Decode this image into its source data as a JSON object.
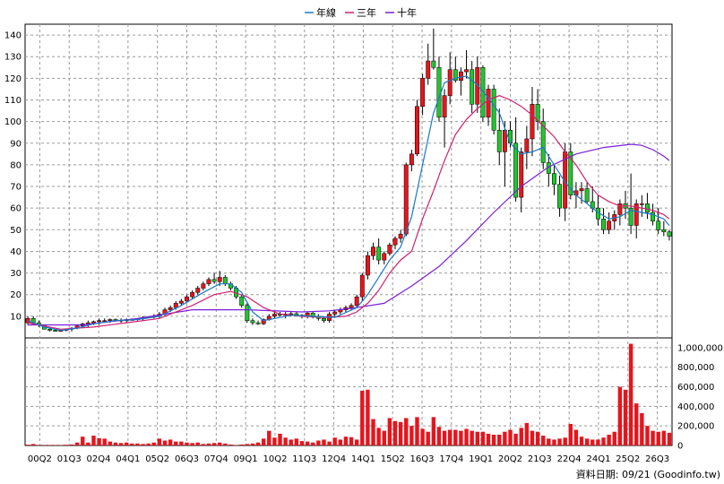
{
  "chart_data": {
    "type": "candlestick",
    "legend": [
      {
        "label": "年線",
        "color": "#1a78c8"
      },
      {
        "label": "三年",
        "color": "#d0206f"
      },
      {
        "label": "十年",
        "color": "#7b1fd8"
      }
    ],
    "legend_position": "top-center",
    "grid": true,
    "price_axis": {
      "ylim": [
        0,
        145
      ],
      "ticks": [
        10,
        20,
        30,
        40,
        50,
        60,
        70,
        80,
        90,
        100,
        110,
        120,
        130,
        140
      ],
      "side": "left"
    },
    "volume_axis": {
      "ylim": [
        0,
        1100000
      ],
      "ticks": [
        0,
        200000,
        400000,
        600000,
        800000,
        1000000
      ],
      "tick_labels": [
        "0",
        "200,000",
        "400,000",
        "600,000",
        "800,000",
        "1,000,000"
      ],
      "side": "right"
    },
    "x_tick_labels": [
      "00Q2",
      "01Q3",
      "02Q4",
      "04Q1",
      "05Q2",
      "06Q3",
      "07Q4",
      "09Q1",
      "10Q2",
      "11Q3",
      "12Q4",
      "14Q1",
      "15Q2",
      "16Q3",
      "17Q4",
      "19Q1",
      "20Q2",
      "21Q3",
      "22Q4",
      "24Q1",
      "25Q2",
      "26Q3"
    ],
    "candles": [
      [
        7,
        10,
        6,
        9
      ],
      [
        9,
        10,
        6,
        7
      ],
      [
        7,
        8,
        5,
        6
      ],
      [
        6,
        6,
        4,
        4
      ],
      [
        4,
        5,
        3,
        3.5
      ],
      [
        3.5,
        4,
        3,
        3
      ],
      [
        3,
        4,
        3,
        3.5
      ],
      [
        3.5,
        4,
        3,
        4
      ],
      [
        4,
        5,
        3,
        4.5
      ],
      [
        4.5,
        6,
        4,
        5.5
      ],
      [
        5.5,
        7,
        5,
        6.5
      ],
      [
        6.5,
        8,
        5,
        7
      ],
      [
        7,
        8,
        6,
        7.5
      ],
      [
        7.5,
        9,
        6,
        8
      ],
      [
        8,
        9,
        7,
        8
      ],
      [
        8,
        9,
        7,
        8.5
      ],
      [
        8.5,
        9,
        8,
        8.2
      ],
      [
        8.2,
        9,
        7,
        8
      ],
      [
        8,
        9,
        7,
        8.5
      ],
      [
        8.5,
        9,
        8,
        8.5
      ],
      [
        8.5,
        9,
        8,
        8.8
      ],
      [
        8.8,
        10,
        8,
        9.5
      ],
      [
        9.5,
        10,
        9,
        9.8
      ],
      [
        9.8,
        11,
        9,
        10
      ],
      [
        10,
        12,
        9,
        11
      ],
      [
        11,
        14,
        10,
        13
      ],
      [
        13,
        15,
        12,
        14
      ],
      [
        14,
        17,
        13,
        16
      ],
      [
        16,
        18,
        15,
        17
      ],
      [
        17,
        20,
        16,
        19
      ],
      [
        19,
        22,
        18,
        21
      ],
      [
        21,
        24,
        20,
        23
      ],
      [
        23,
        26,
        22,
        25
      ],
      [
        25,
        28,
        24,
        27
      ],
      [
        27,
        30,
        25,
        26
      ],
      [
        26,
        31,
        24,
        28
      ],
      [
        28,
        29,
        24,
        25
      ],
      [
        25,
        26,
        22,
        23
      ],
      [
        23,
        24,
        18,
        19
      ],
      [
        19,
        20,
        14,
        15
      ],
      [
        15,
        16,
        7,
        8
      ],
      [
        8,
        9,
        6,
        7
      ],
      [
        7,
        8,
        6,
        6.5
      ],
      [
        6.5,
        9,
        6,
        8.5
      ],
      [
        8.5,
        11,
        8,
        10
      ],
      [
        10,
        12,
        9,
        11
      ],
      [
        11,
        12,
        10,
        10.5
      ],
      [
        10.5,
        12,
        9,
        11
      ],
      [
        11,
        12,
        10,
        11.2
      ],
      [
        11.2,
        12,
        10,
        10.5
      ],
      [
        10.5,
        11,
        9,
        10
      ],
      [
        10,
        12,
        9,
        11.5
      ],
      [
        11.5,
        12,
        9,
        10
      ],
      [
        10,
        11,
        8,
        9
      ],
      [
        9,
        10,
        7,
        8
      ],
      [
        8,
        12,
        7,
        11
      ],
      [
        11,
        13,
        10,
        12
      ],
      [
        12,
        14,
        11,
        13
      ],
      [
        13,
        15,
        12,
        14
      ],
      [
        14,
        16,
        13,
        15
      ],
      [
        15,
        20,
        14,
        19
      ],
      [
        19,
        30,
        17,
        29
      ],
      [
        29,
        40,
        27,
        38
      ],
      [
        38,
        44,
        36,
        42
      ],
      [
        42,
        46,
        34,
        36
      ],
      [
        36,
        40,
        34,
        39
      ],
      [
        39,
        44,
        38,
        43
      ],
      [
        43,
        47,
        41,
        46
      ],
      [
        46,
        50,
        44,
        48
      ],
      [
        48,
        81,
        47,
        80
      ],
      [
        80,
        87,
        77,
        85
      ],
      [
        85,
        110,
        84,
        107
      ],
      [
        107,
        122,
        103,
        120
      ],
      [
        120,
        136,
        117,
        128
      ],
      [
        128,
        143,
        124,
        125
      ],
      [
        125,
        130,
        100,
        102
      ],
      [
        102,
        115,
        88,
        112
      ],
      [
        112,
        132,
        108,
        124
      ],
      [
        124,
        130,
        118,
        119
      ],
      [
        119,
        125,
        112,
        123
      ],
      [
        123,
        133,
        120,
        124
      ],
      [
        124,
        128,
        104,
        108
      ],
      [
        108,
        130,
        104,
        125
      ],
      [
        125,
        126,
        100,
        102
      ],
      [
        102,
        117,
        98,
        115
      ],
      [
        115,
        117,
        94,
        96
      ],
      [
        96,
        106,
        80,
        86
      ],
      [
        86,
        100,
        70,
        96
      ],
      [
        96,
        100,
        88,
        90
      ],
      [
        90,
        102,
        63,
        65
      ],
      [
        65,
        88,
        58,
        86
      ],
      [
        86,
        98,
        78,
        92
      ],
      [
        92,
        116,
        84,
        108
      ],
      [
        108,
        115,
        96,
        100
      ],
      [
        100,
        106,
        78,
        81
      ],
      [
        81,
        85,
        70,
        76
      ],
      [
        76,
        80,
        66,
        71
      ],
      [
        71,
        75,
        56,
        60
      ],
      [
        60,
        90,
        54,
        86
      ],
      [
        86,
        90,
        64,
        66
      ],
      [
        66,
        72,
        60,
        68
      ],
      [
        68,
        72,
        62,
        69
      ],
      [
        69,
        72,
        62,
        63
      ],
      [
        63,
        70,
        58,
        60
      ],
      [
        60,
        66,
        52,
        55
      ],
      [
        55,
        60,
        48,
        50
      ],
      [
        50,
        58,
        48,
        54
      ],
      [
        54,
        59,
        50,
        57
      ],
      [
        57,
        64,
        52,
        62
      ],
      [
        62,
        68,
        55,
        60
      ],
      [
        60,
        76,
        48,
        52
      ],
      [
        52,
        64,
        46,
        62
      ],
      [
        62,
        66,
        56,
        62
      ],
      [
        62,
        67,
        55,
        58
      ],
      [
        58,
        62,
        52,
        54
      ],
      [
        54,
        60,
        48,
        50
      ],
      [
        50,
        54,
        47,
        49
      ],
      [
        49,
        50,
        45,
        47
      ]
    ],
    "volumes": [
      8000,
      15000,
      5000,
      5000,
      5000,
      5000,
      4000,
      7000,
      10000,
      30000,
      90000,
      30000,
      100000,
      75000,
      70000,
      40000,
      30000,
      25000,
      30000,
      20000,
      20000,
      15000,
      20000,
      30000,
      70000,
      50000,
      60000,
      40000,
      40000,
      30000,
      25000,
      30000,
      15000,
      20000,
      25000,
      30000,
      20000,
      10000,
      5000,
      10000,
      15000,
      20000,
      30000,
      70000,
      150000,
      80000,
      120000,
      80000,
      60000,
      70000,
      45000,
      40000,
      30000,
      50000,
      60000,
      40000,
      80000,
      60000,
      90000,
      85000,
      60000,
      560000,
      570000,
      270000,
      180000,
      150000,
      280000,
      250000,
      240000,
      280000,
      200000,
      290000,
      170000,
      140000,
      290000,
      190000,
      150000,
      160000,
      160000,
      150000,
      170000,
      150000,
      140000,
      140000,
      120000,
      110000,
      110000,
      140000,
      160000,
      120000,
      180000,
      230000,
      150000,
      140000,
      100000,
      70000,
      60000,
      70000,
      80000,
      220000,
      160000,
      90000,
      70000,
      60000,
      60000,
      80000,
      110000,
      140000,
      600000,
      570000,
      1040000,
      430000,
      330000,
      200000,
      150000,
      140000,
      150000,
      130000
    ],
    "ma_year": [
      [
        0,
        8
      ],
      [
        3,
        5
      ],
      [
        6,
        3.5
      ],
      [
        9,
        4.5
      ],
      [
        12,
        6.5
      ],
      [
        16,
        8
      ],
      [
        20,
        8.5
      ],
      [
        24,
        10
      ],
      [
        28,
        15
      ],
      [
        32,
        21
      ],
      [
        35,
        25
      ],
      [
        37,
        25
      ],
      [
        39,
        21
      ],
      [
        41,
        12
      ],
      [
        43,
        8
      ],
      [
        45,
        9
      ],
      [
        48,
        10.5
      ],
      [
        52,
        10
      ],
      [
        56,
        9.5
      ],
      [
        60,
        14
      ],
      [
        62,
        20
      ],
      [
        64,
        28
      ],
      [
        66,
        36
      ],
      [
        68,
        42
      ],
      [
        70,
        56
      ],
      [
        72,
        80
      ],
      [
        74,
        104
      ],
      [
        76,
        118
      ],
      [
        78,
        120
      ],
      [
        80,
        121
      ],
      [
        82,
        117
      ],
      [
        84,
        111
      ],
      [
        86,
        104
      ],
      [
        88,
        90
      ],
      [
        90,
        85
      ],
      [
        92,
        86
      ],
      [
        94,
        88
      ],
      [
        96,
        80
      ],
      [
        98,
        72
      ],
      [
        100,
        66
      ],
      [
        102,
        62
      ],
      [
        104,
        58
      ],
      [
        106,
        55
      ],
      [
        108,
        56
      ],
      [
        110,
        59
      ],
      [
        112,
        58
      ],
      [
        114,
        57
      ],
      [
        116,
        55
      ],
      [
        117,
        52
      ]
    ],
    "ma_three": [
      [
        0,
        7
      ],
      [
        6,
        4
      ],
      [
        12,
        5
      ],
      [
        18,
        7
      ],
      [
        24,
        9
      ],
      [
        30,
        15
      ],
      [
        34,
        20
      ],
      [
        37,
        21.5
      ],
      [
        40,
        19
      ],
      [
        43,
        14
      ],
      [
        46,
        11
      ],
      [
        50,
        10
      ],
      [
        54,
        9.5
      ],
      [
        58,
        10
      ],
      [
        60,
        12
      ],
      [
        62,
        16
      ],
      [
        64,
        22
      ],
      [
        66,
        30
      ],
      [
        68,
        36
      ],
      [
        70,
        40
      ],
      [
        72,
        55
      ],
      [
        74,
        68
      ],
      [
        76,
        82
      ],
      [
        78,
        94
      ],
      [
        80,
        101
      ],
      [
        82,
        106
      ],
      [
        84,
        110
      ],
      [
        86,
        112
      ],
      [
        88,
        110
      ],
      [
        90,
        107
      ],
      [
        92,
        103
      ],
      [
        94,
        98
      ],
      [
        96,
        93
      ],
      [
        98,
        86
      ],
      [
        100,
        80
      ],
      [
        102,
        72
      ],
      [
        104,
        66
      ],
      [
        106,
        63
      ],
      [
        108,
        61
      ],
      [
        110,
        61
      ],
      [
        112,
        60
      ],
      [
        114,
        59
      ],
      [
        116,
        57
      ],
      [
        117,
        55
      ]
    ],
    "ma_ten": [
      [
        0,
        6
      ],
      [
        10,
        6
      ],
      [
        20,
        9
      ],
      [
        30,
        13
      ],
      [
        40,
        13
      ],
      [
        50,
        12
      ],
      [
        55,
        12.5
      ],
      [
        60,
        14
      ],
      [
        65,
        16
      ],
      [
        70,
        24
      ],
      [
        75,
        33
      ],
      [
        80,
        45
      ],
      [
        85,
        58
      ],
      [
        90,
        70
      ],
      [
        95,
        79
      ],
      [
        100,
        85
      ],
      [
        105,
        88
      ],
      [
        110,
        89.5
      ],
      [
        112,
        89
      ],
      [
        114,
        87
      ],
      [
        116,
        84
      ],
      [
        117,
        82
      ]
    ],
    "up_color": "#e8141c",
    "down_color": "#1ec72c",
    "volume_color": "#e8141c"
  },
  "footer": {
    "source_text": "資料日期: 09/21  (Goodinfo.tw)"
  }
}
